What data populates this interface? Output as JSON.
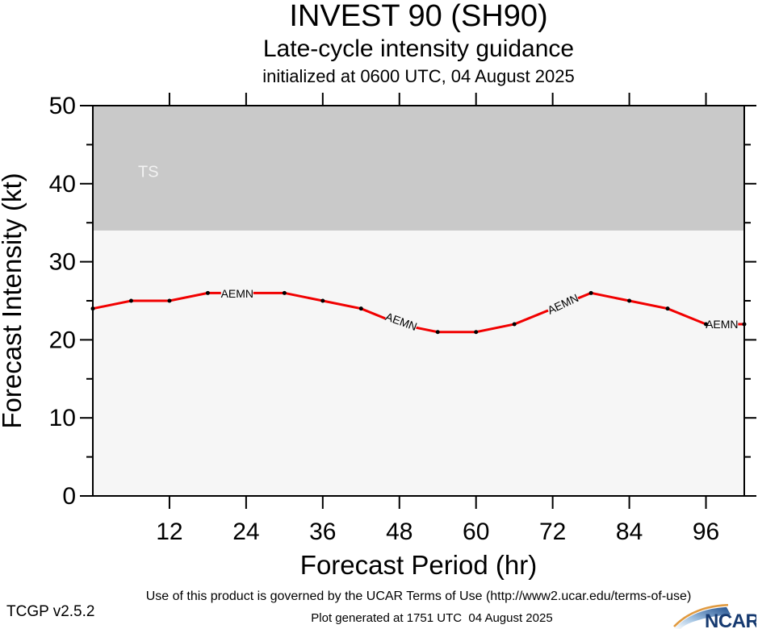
{
  "chart_data": {
    "type": "line",
    "title": "INVEST 90 (SH90)",
    "subtitle": "Late-cycle intensity guidance",
    "init_label": "initialized at 0600 UTC, 04 August 2025",
    "xlabel": "Forecast Period (hr)",
    "ylabel": "Forecast Intensity (kt)",
    "xlim": [
      0,
      102
    ],
    "ylim": [
      0,
      50
    ],
    "x_ticks": [
      12,
      24,
      36,
      48,
      60,
      72,
      84,
      96
    ],
    "y_ticks_major": [
      0,
      10,
      20,
      30,
      40,
      50
    ],
    "y_ticks_minor": [
      5,
      15,
      25,
      35,
      45
    ],
    "grid": false,
    "legend": "inline-labels",
    "plot_bg": "#f6f6f6",
    "axis_color": "#000000",
    "bands": [
      {
        "label": "TS",
        "from_kt": 34,
        "to_kt": 50,
        "color": "#c9c9c9",
        "label_color": "#f2f2f2",
        "label_pos_hr": 8.7,
        "label_pos_kt": 41.6
      }
    ],
    "series": [
      {
        "name": "AEMN",
        "color": "#f10000",
        "marker_color": "#000000",
        "hours": [
          0,
          6,
          12,
          18,
          24,
          30,
          36,
          42,
          48,
          54,
          60,
          66,
          72,
          78,
          84,
          90,
          96,
          102
        ],
        "values_kt": [
          24,
          25,
          25,
          26,
          26,
          26,
          25,
          24,
          22,
          21,
          21,
          22,
          24,
          26,
          25,
          24,
          22,
          22
        ],
        "label_hours_no_marker": [
          24,
          48,
          72
        ],
        "inline_labels": [
          {
            "text": "AEMN",
            "hr": 22.6,
            "kt": 25.95,
            "angle": 0
          },
          {
            "text": "AEMN",
            "hr": 48.3,
            "kt": 22.35,
            "angle": 20
          },
          {
            "text": "AEMN",
            "hr": 73.6,
            "kt": 24.6,
            "angle": -25
          },
          {
            "text": "AEMN",
            "hr": 98.5,
            "kt": 22.0,
            "angle": 0
          }
        ]
      }
    ]
  },
  "footer": {
    "terms": "Use of this product is governed by the UCAR Terms of Use (http://www2.ucar.edu/terms-of-use)",
    "version": "TCGP v2.5.2",
    "generated": "Plot generated at 1751 UTC  04 August 2025",
    "logo_text": "NCAR"
  }
}
